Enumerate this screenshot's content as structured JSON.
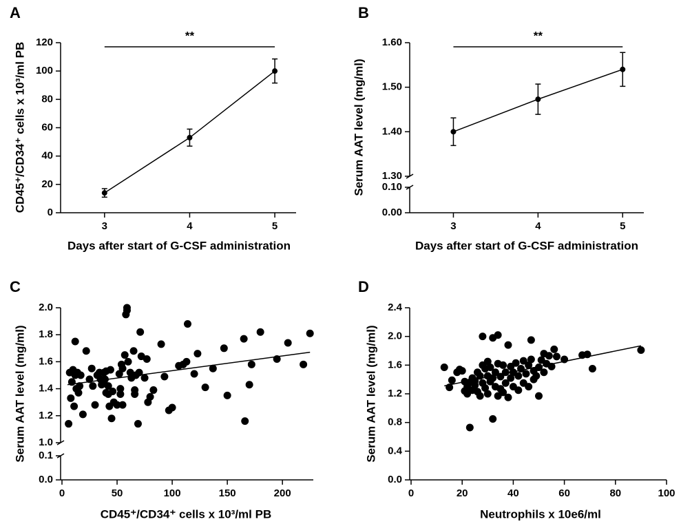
{
  "chart_data": [
    {
      "type": "line",
      "panel_label": "A",
      "annotation": "**",
      "xlabel": "Days after start of G-CSF administration",
      "ylabel": "CD45⁺/CD34⁺ cells x 10³/ml PB",
      "x": [
        3,
        4,
        5
      ],
      "values": [
        14,
        53,
        100
      ],
      "errors": [
        3,
        6,
        8.5
      ],
      "color": "#000000",
      "xlim": [
        2.5,
        5.25
      ],
      "xticks": [
        3,
        4,
        5
      ],
      "ylim": [
        0,
        120
      ],
      "yticks": [
        0,
        20,
        40,
        60,
        80,
        100,
        120
      ]
    },
    {
      "type": "line",
      "panel_label": "B",
      "annotation": "**",
      "xlabel": "Days after start of G-CSF administration",
      "ylabel": "Serum AAT level (mg/ml)",
      "x": [
        3,
        4,
        5
      ],
      "values": [
        1.4,
        1.473,
        1.54
      ],
      "errors": [
        0.031,
        0.034,
        0.038
      ],
      "color": "#000000",
      "xlim": [
        2.5,
        5.25
      ],
      "xticks": [
        3,
        4,
        5
      ],
      "ylim": [
        1.3,
        1.6
      ],
      "yticks": [
        {
          "value": 1.3,
          "label": "1.30"
        },
        {
          "value": 1.4,
          "label": "1.40"
        },
        {
          "value": 1.5,
          "label": "1.50"
        },
        {
          "value": 1.6,
          "label": "1.60"
        }
      ],
      "lower_ylim": [
        0,
        0.1
      ],
      "lower_yticks": [
        {
          "value": 0,
          "label": "0.00"
        },
        {
          "value": 0.1,
          "label": "0.10"
        }
      ]
    },
    {
      "type": "scatter",
      "panel_label": "C",
      "xlabel": "CD45⁺/CD34⁺ cells x 10³/ml PB",
      "ylabel": "Serum AAT level (mg/ml)",
      "color": "#000000",
      "x": [
        6,
        7,
        8,
        9,
        10,
        11,
        12,
        12,
        13,
        14,
        15,
        16,
        17,
        19,
        22,
        25,
        27,
        28,
        30,
        32,
        34,
        35,
        36,
        38,
        38,
        39,
        40,
        40,
        42,
        42,
        43,
        44,
        45,
        46,
        47,
        50,
        52,
        53,
        53,
        54,
        55,
        55,
        57,
        58,
        59,
        59,
        60,
        62,
        63,
        65,
        66,
        66,
        67,
        69,
        70,
        71,
        72,
        75,
        77,
        78,
        80,
        83,
        90,
        93,
        97,
        100,
        106,
        110,
        113,
        114,
        120,
        123,
        130,
        137,
        147,
        150,
        165,
        166,
        170,
        172,
        180,
        195,
        205,
        219,
        225
      ],
      "y": [
        1.14,
        1.52,
        1.33,
        1.45,
        1.54,
        1.27,
        1.75,
        1.5,
        1.4,
        1.52,
        1.37,
        1.42,
        1.5,
        1.21,
        1.68,
        1.47,
        1.55,
        1.42,
        1.28,
        1.5,
        1.52,
        1.47,
        1.43,
        1.52,
        1.45,
        1.47,
        1.53,
        1.37,
        1.36,
        1.42,
        1.27,
        1.54,
        1.18,
        1.38,
        1.3,
        1.28,
        1.51,
        1.4,
        1.36,
        1.58,
        1.55,
        1.28,
        1.65,
        1.95,
        2.0,
        1.98,
        1.6,
        1.52,
        1.48,
        1.68,
        1.39,
        1.36,
        1.5,
        1.14,
        1.52,
        1.82,
        1.64,
        1.48,
        1.62,
        1.3,
        1.34,
        1.39,
        1.73,
        1.49,
        1.24,
        1.26,
        1.57,
        1.58,
        1.6,
        1.88,
        1.51,
        1.66,
        1.41,
        1.55,
        1.7,
        1.35,
        1.77,
        1.16,
        1.43,
        1.58,
        1.82,
        1.62,
        1.74,
        1.58,
        1.81
      ],
      "fit": {
        "x": [
          5,
          225
        ],
        "y": [
          1.43,
          1.67
        ]
      },
      "xlim": [
        0,
        228
      ],
      "xticks": [
        0,
        50,
        100,
        150,
        200
      ],
      "ylim": [
        1.0,
        2.0
      ],
      "yticks": [
        {
          "value": 1.0,
          "label": "1.0"
        },
        1.2,
        1.4,
        1.6,
        1.8,
        {
          "value": 2.0,
          "label": "2.0"
        }
      ],
      "lower_ylim": [
        0,
        0.1
      ],
      "lower_yticks": [
        {
          "value": 0,
          "label": "0.0"
        },
        0.1
      ]
    },
    {
      "type": "scatter",
      "panel_label": "D",
      "xlabel": "Neutrophils x 10e6/ml",
      "ylabel": "Serum AAT level (mg/ml)",
      "color": "#000000",
      "x": [
        13,
        15,
        16,
        18,
        19,
        20,
        21,
        21,
        22,
        22,
        23,
        23,
        24,
        24,
        25,
        25,
        26,
        26,
        27,
        27,
        28,
        28,
        28,
        29,
        29,
        30,
        30,
        30,
        31,
        31,
        32,
        32,
        32,
        33,
        33,
        34,
        34,
        34,
        35,
        35,
        36,
        36,
        37,
        37,
        38,
        38,
        39,
        39,
        40,
        40,
        41,
        42,
        42,
        43,
        44,
        44,
        45,
        46,
        46,
        47,
        47,
        48,
        48,
        49,
        50,
        50,
        51,
        52,
        52,
        53,
        54,
        55,
        56,
        57,
        60,
        67,
        69,
        71,
        90
      ],
      "y": [
        1.57,
        1.29,
        1.39,
        1.5,
        1.54,
        1.52,
        1.37,
        1.24,
        1.3,
        1.2,
        0.73,
        1.36,
        1.25,
        1.42,
        1.32,
        1.38,
        1.5,
        1.23,
        1.45,
        1.17,
        2.0,
        1.6,
        1.35,
        1.55,
        1.28,
        1.65,
        1.45,
        1.2,
        1.37,
        1.57,
        0.85,
        1.98,
        1.42,
        1.5,
        1.3,
        1.62,
        2.02,
        1.17,
        1.44,
        1.27,
        1.6,
        1.22,
        1.5,
        1.35,
        1.88,
        1.15,
        1.58,
        1.42,
        1.3,
        1.5,
        1.63,
        1.45,
        1.25,
        1.55,
        1.66,
        1.35,
        1.48,
        1.6,
        1.3,
        1.95,
        1.68,
        1.52,
        1.4,
        1.45,
        1.57,
        1.17,
        1.67,
        1.5,
        1.76,
        1.62,
        1.73,
        1.58,
        1.82,
        1.72,
        1.68,
        1.74,
        1.75,
        1.55,
        1.81
      ],
      "fit": {
        "x": [
          13,
          90
        ],
        "y": [
          1.31,
          1.87
        ]
      },
      "xlim": [
        0,
        100
      ],
      "xticks": [
        0,
        20,
        40,
        60,
        80,
        100
      ],
      "ylim": [
        0,
        2.4
      ],
      "yticks": [
        {
          "value": 0,
          "label": "0.0"
        },
        0.4,
        0.8,
        1.2,
        1.6,
        {
          "value": 2.0,
          "label": "2.0"
        },
        2.4
      ]
    }
  ]
}
